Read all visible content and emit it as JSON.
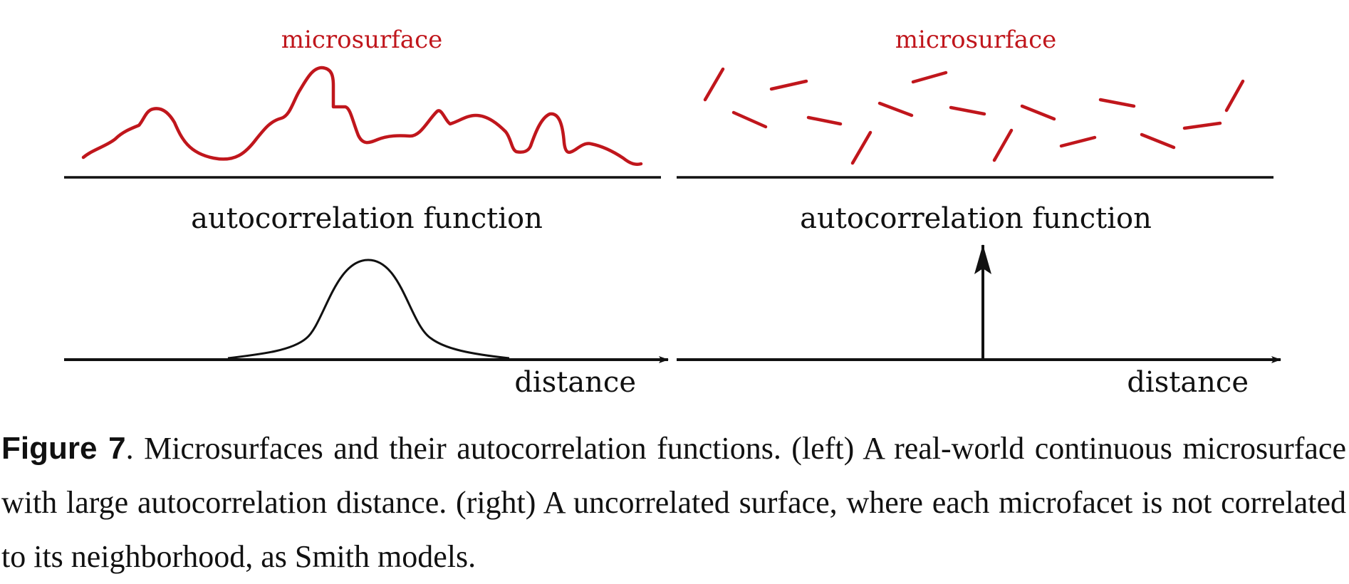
{
  "figure": {
    "left_panel": {
      "surface_label": "microsurface",
      "function_label": "autocorrelation function",
      "axis_label": "distance"
    },
    "right_panel": {
      "surface_label": "microsurface",
      "function_label": "autocorrelation function",
      "axis_label": "distance"
    },
    "colors": {
      "surface": "#c0161c",
      "ink": "#111111"
    }
  },
  "caption": {
    "label": "Figure 7",
    "text": ".  Microsurfaces and their autocorrelation functions. (left) A real-world continuous microsurface with large autocorrelation distance. (right) A uncorrelated surface, where each microfacet is not correlated to its neighborhood, as Smith models."
  }
}
